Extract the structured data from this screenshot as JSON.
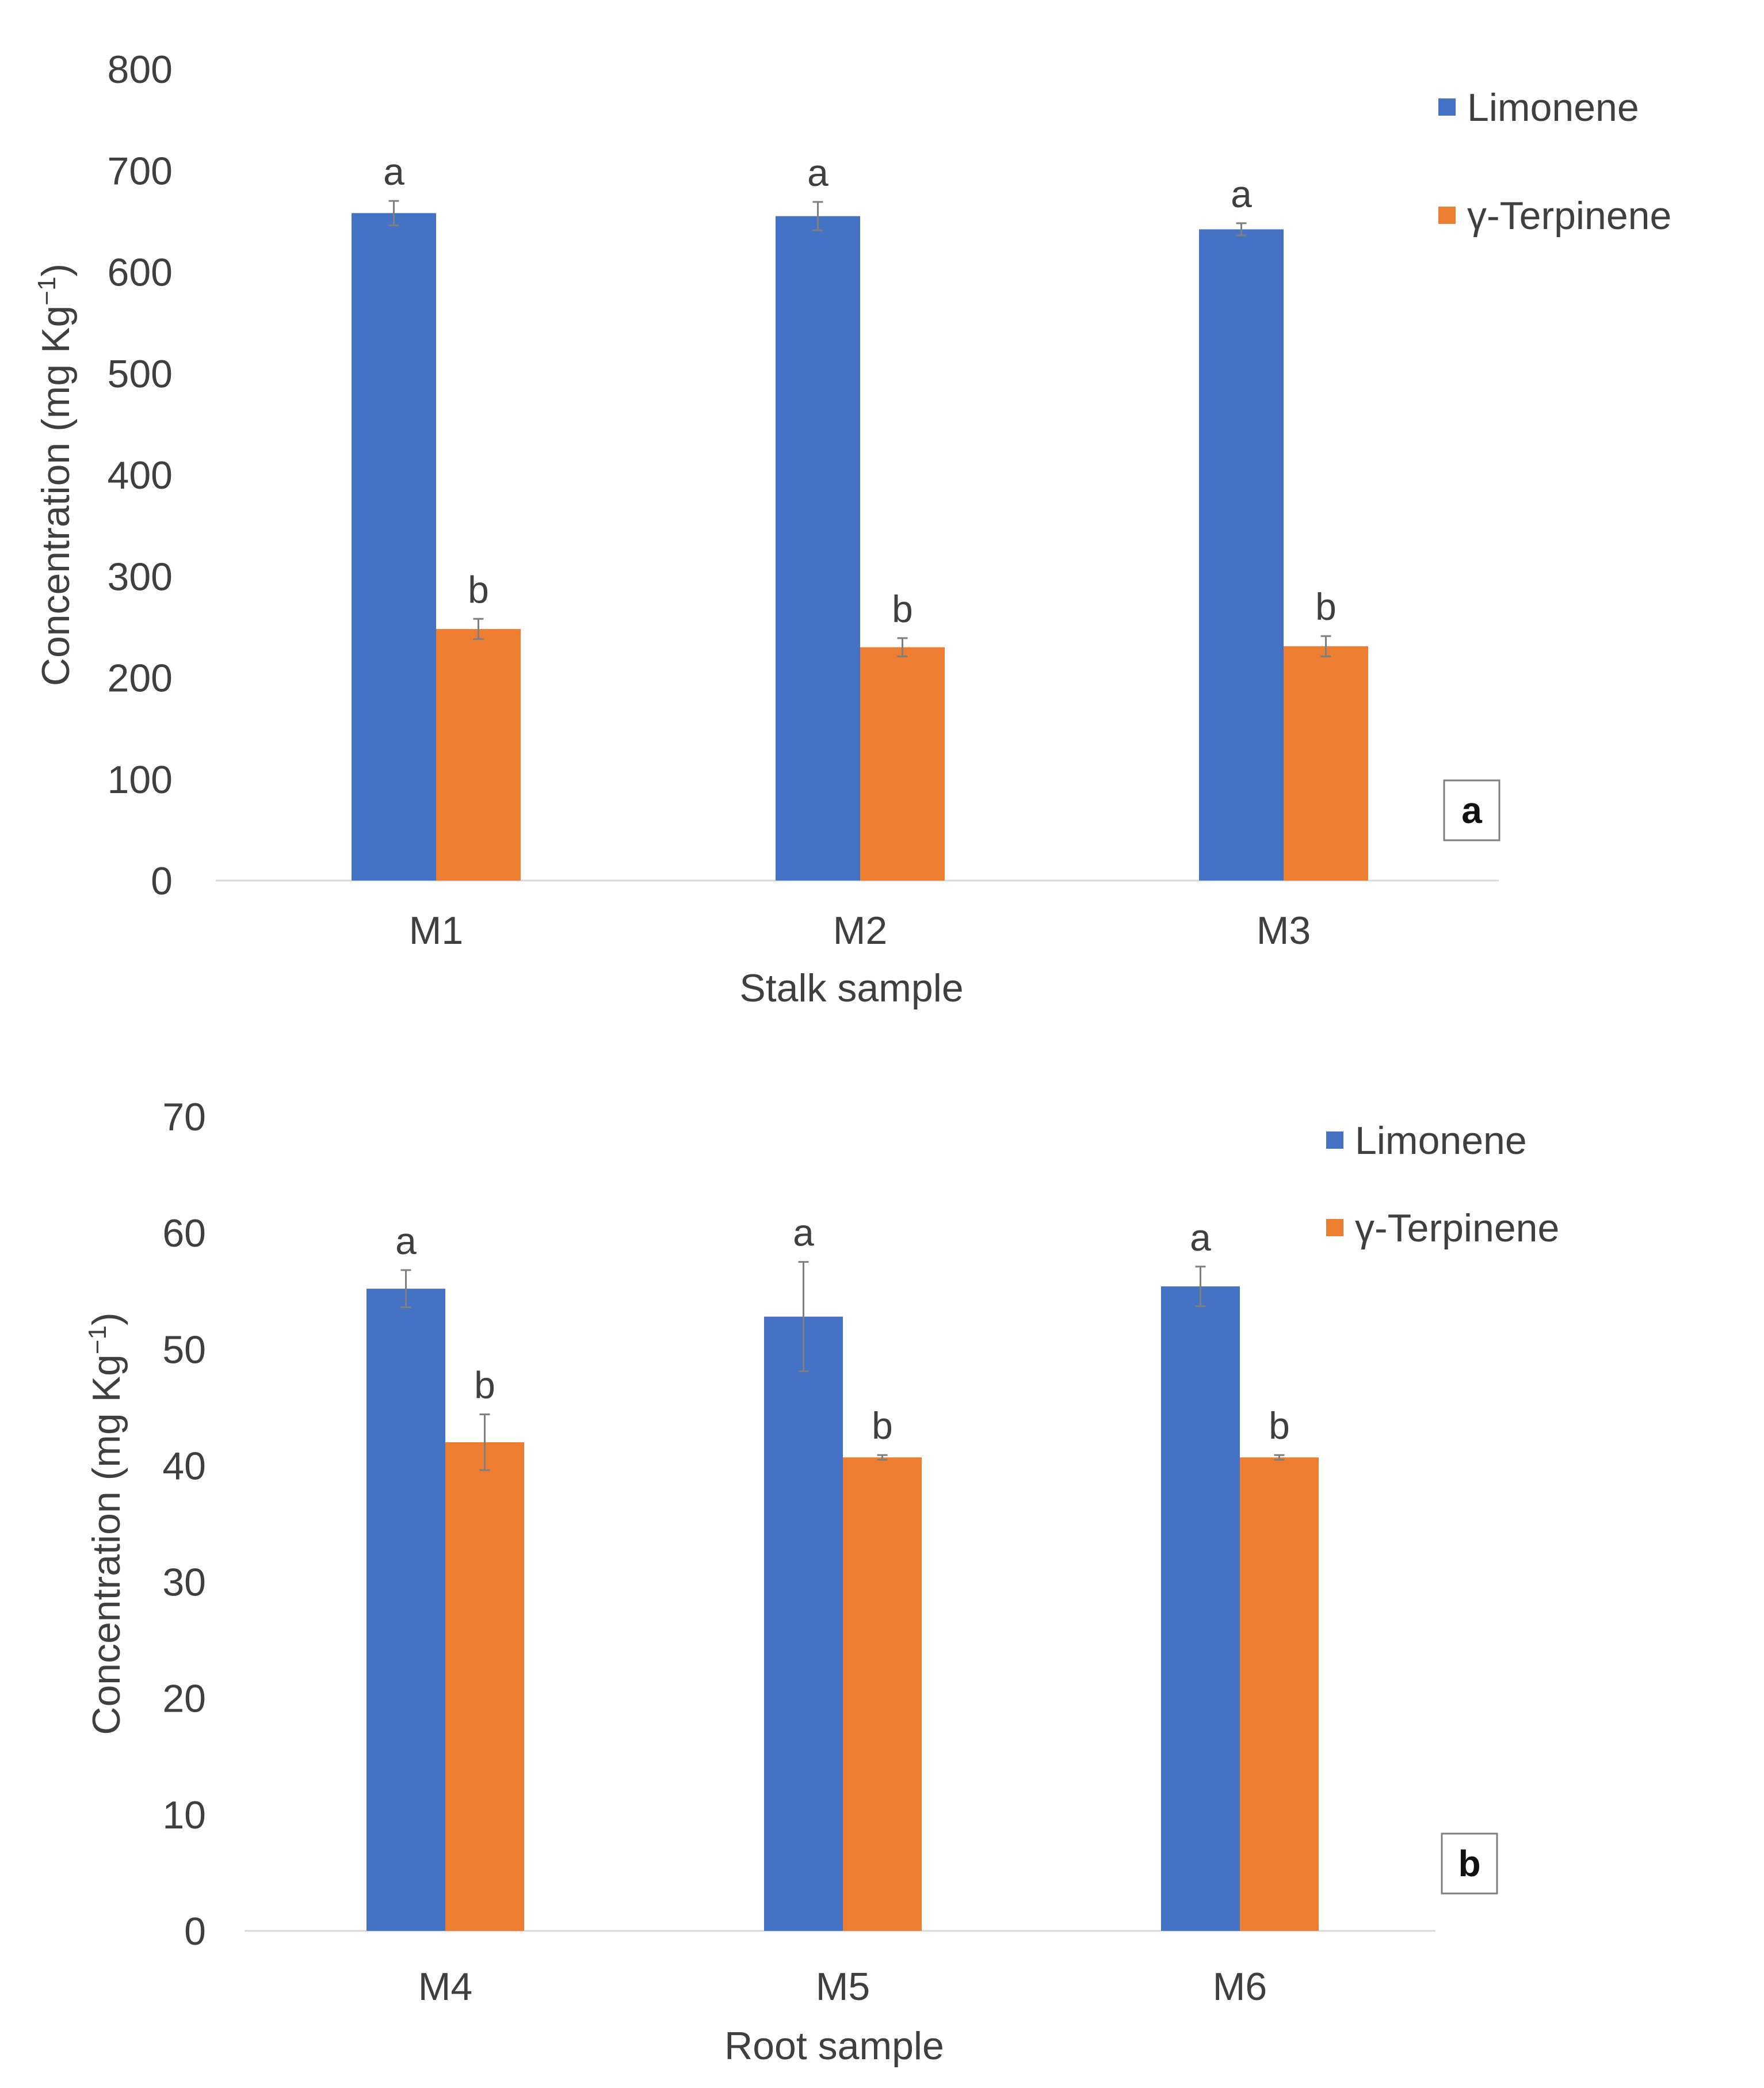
{
  "chart_data": [
    {
      "type": "bar",
      "panel_label": "a",
      "xlabel": "Stalk sample",
      "ylabel": "Concentration (mg Kg",
      "ylabel_sup": "−1",
      "ylabel_close": ")",
      "ylim": [
        0,
        800
      ],
      "yticks": [
        "0",
        "100",
        "200",
        "300",
        "400",
        "500",
        "600",
        "700",
        "800"
      ],
      "grid": false,
      "legend_position": "top-right",
      "categories": [
        "M1",
        "M2",
        "M3"
      ],
      "series": [
        {
          "name": "Limonene",
          "color": "#4472c4",
          "values": [
            658,
            655,
            642
          ],
          "errors": [
            12,
            14,
            6
          ],
          "letters": [
            "a",
            "a",
            "a"
          ]
        },
        {
          "name": "γ-Terpinene",
          "color": "#ed7d31",
          "values": [
            248,
            230,
            231
          ],
          "errors": [
            10,
            9,
            10
          ],
          "letters": [
            "b",
            "b",
            "b"
          ]
        }
      ]
    },
    {
      "type": "bar",
      "panel_label": "b",
      "xlabel": "Root sample",
      "ylabel": "Concentration (mg Kg",
      "ylabel_sup": "−1",
      "ylabel_close": ")",
      "ylim": [
        0,
        70
      ],
      "yticks": [
        "0",
        "10",
        "20",
        "30",
        "40",
        "50",
        "60",
        "70"
      ],
      "grid": false,
      "legend_position": "top-right",
      "categories": [
        "M4",
        "M5",
        "M6"
      ],
      "series": [
        {
          "name": "Limonene",
          "color": "#4472c4",
          "values": [
            55.2,
            52.8,
            55.4
          ],
          "errors": [
            1.6,
            4.7,
            1.7
          ],
          "letters": [
            "a",
            "a",
            "a"
          ]
        },
        {
          "name": "γ-Terpinene",
          "color": "#ed7d31",
          "values": [
            42.0,
            40.7,
            40.7
          ],
          "errors": [
            2.4,
            0.2,
            0.2
          ],
          "letters": [
            "b",
            "b",
            "b"
          ]
        }
      ]
    }
  ]
}
